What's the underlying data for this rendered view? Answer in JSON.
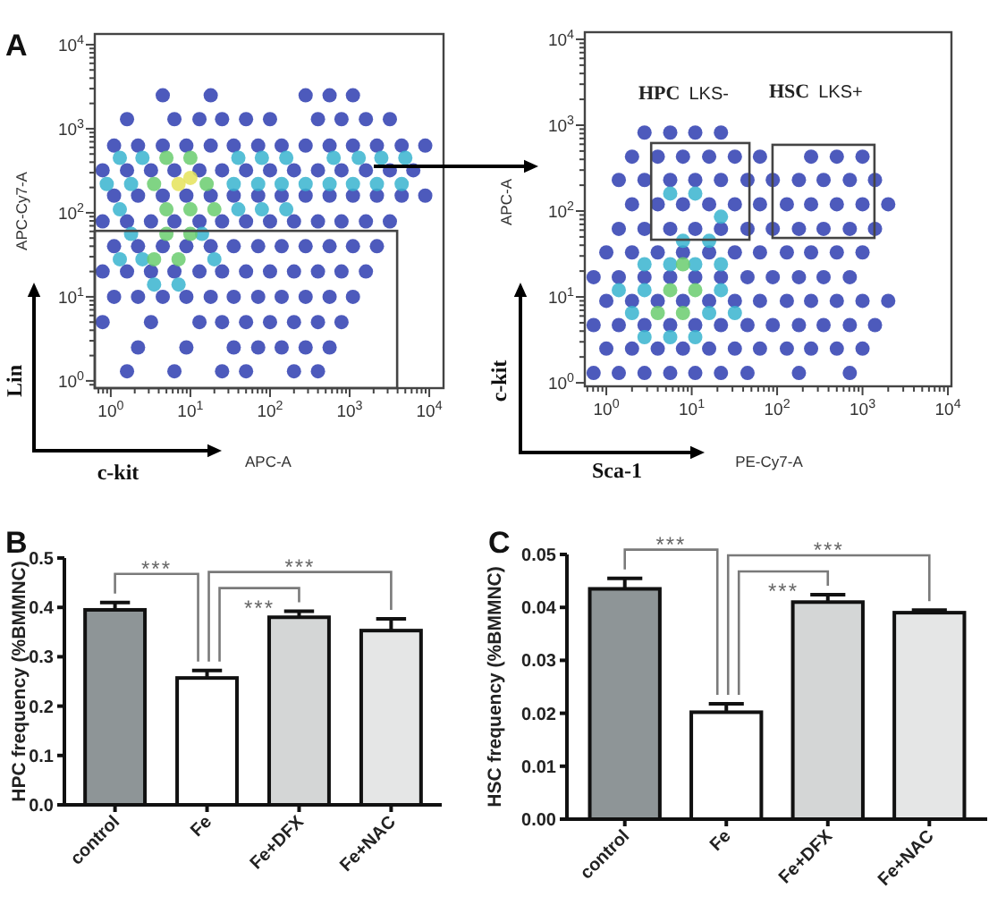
{
  "chart_data": [
    {
      "type": "scatter",
      "title": "A",
      "xlabel": "APC-A",
      "ylabel": "APC-Cy7-A",
      "log": "xy",
      "marker": "circle",
      "xlim": [
        0.63,
        15100
      ],
      "ylim": [
        0.82,
        13400
      ],
      "xticks": [
        {
          "value": 0.7,
          "label": null
        },
        {
          "value": 0.8,
          "label": null
        },
        {
          "value": 0.9,
          "label": null
        },
        {
          "value": 1,
          "label": "10$^{0}$"
        },
        {
          "value": 2,
          "label": null
        },
        {
          "value": 3,
          "label": null
        },
        {
          "value": 4,
          "label": null
        },
        {
          "value": 5,
          "label": null
        },
        {
          "value": 6,
          "label": null
        },
        {
          "value": 7,
          "label": null
        },
        {
          "value": 8,
          "label": null
        },
        {
          "value": 9,
          "label": null
        },
        {
          "value": 10,
          "label": "10$^{1}$"
        },
        {
          "value": 20,
          "label": null
        },
        {
          "value": 30,
          "label": null
        },
        {
          "value": 40,
          "label": null
        },
        {
          "value": 50,
          "label": null
        },
        {
          "value": 60,
          "label": null
        },
        {
          "value": 70,
          "label": null
        },
        {
          "value": 80,
          "label": null
        },
        {
          "value": 90,
          "label": null
        },
        {
          "value": 100,
          "label": "10$^{2}$"
        },
        {
          "value": 200,
          "label": null
        },
        {
          "value": 300,
          "label": null
        },
        {
          "value": 400,
          "label": null
        },
        {
          "value": 500,
          "label": null
        },
        {
          "value": 600,
          "label": null
        },
        {
          "value": 700,
          "label": null
        },
        {
          "value": 800,
          "label": null
        },
        {
          "value": 900,
          "label": null
        },
        {
          "value": 1000,
          "label": "10$^{3}$"
        },
        {
          "value": 2000,
          "label": null
        },
        {
          "value": 3000,
          "label": null
        },
        {
          "value": 4000,
          "label": null
        },
        {
          "value": 5000,
          "label": null
        },
        {
          "value": 6000,
          "label": null
        },
        {
          "value": 7000,
          "label": null
        },
        {
          "value": 8000,
          "label": null
        },
        {
          "value": 9000,
          "label": null
        },
        {
          "value": 10000,
          "label": "10$^{4}$"
        }
      ],
      "yticks": [
        {
          "value": 0.9,
          "label": null
        },
        {
          "value": 1,
          "label": "10$^{0}$"
        },
        {
          "value": 2,
          "label": null
        },
        {
          "value": 3,
          "label": null
        },
        {
          "value": 4,
          "label": null
        },
        {
          "value": 5,
          "label": null
        },
        {
          "value": 6,
          "label": null
        },
        {
          "value": 7,
          "label": null
        },
        {
          "value": 8,
          "label": null
        },
        {
          "value": 9,
          "label": null
        },
        {
          "value": 10,
          "label": "10$^{1}$"
        },
        {
          "value": 20,
          "label": null
        },
        {
          "value": 30,
          "label": null
        },
        {
          "value": 40,
          "label": null
        },
        {
          "value": 50,
          "label": null
        },
        {
          "value": 60,
          "label": null
        },
        {
          "value": 70,
          "label": null
        },
        {
          "value": 80,
          "label": null
        },
        {
          "value": 90,
          "label": null
        },
        {
          "value": 100,
          "label": "10$^{2}$"
        },
        {
          "value": 200,
          "label": null
        },
        {
          "value": 300,
          "label": null
        },
        {
          "value": 400,
          "label": null
        },
        {
          "value": 500,
          "label": null
        },
        {
          "value": 600,
          "label": null
        },
        {
          "value": 700,
          "label": null
        },
        {
          "value": 800,
          "label": null
        },
        {
          "value": 900,
          "label": null
        },
        {
          "value": 1000,
          "label": "10$^{3}$"
        },
        {
          "value": 2000,
          "label": null
        },
        {
          "value": 3000,
          "label": null
        },
        {
          "value": 4000,
          "label": null
        },
        {
          "value": 5000,
          "label": null
        },
        {
          "value": 6000,
          "label": null
        },
        {
          "value": 7000,
          "label": null
        },
        {
          "value": 8000,
          "label": null
        },
        {
          "value": 9000,
          "label": null
        },
        {
          "value": 10000,
          "label": "10$^{4}$"
        }
      ],
      "annotations": [
        "Lin",
        "c-kit"
      ],
      "series": [
        {
          "color": "#2e3db0",
          "x": [
            1.6,
            6.3,
            25,
            50,
            200,
            400,
            2.2,
            8.9,
            35,
            71,
            140,
            280,
            560,
            0.79,
            3.2,
            13,
            25,
            50,
            100,
            200,
            400,
            790,
            1.1,
            2.2,
            4.5,
            8.9,
            18,
            35,
            71,
            140,
            280,
            560,
            1100,
            0.79,
            1.6,
            3.2,
            6.3,
            13,
            25,
            50,
            100,
            200,
            400,
            790,
            1600,
            1.1,
            2.2,
            4.5,
            8.9,
            18,
            35,
            71,
            140,
            280,
            560,
            1100,
            2200,
            0.79,
            1.6,
            3.2,
            6.3,
            13,
            25,
            50,
            100,
            200,
            400,
            790,
            1600,
            3200,
            1.1,
            2.2,
            4.5,
            8.9,
            18,
            35,
            71,
            140,
            280,
            560,
            1100,
            2200,
            4500,
            8900,
            0.79,
            1.6,
            3.2,
            6.3,
            13,
            25,
            50,
            100,
            200,
            400,
            790,
            1600,
            3200,
            6300,
            1.1,
            2.2,
            4.5,
            8.9,
            18,
            35,
            71,
            140,
            280,
            560,
            1100,
            2200,
            4500,
            8900,
            1.6,
            6.3,
            13,
            25,
            50,
            100,
            400,
            790,
            1600,
            3200,
            4.5,
            18,
            280,
            560,
            1100
          ],
          "values": [
            1.3,
            1.3,
            1.3,
            1.3,
            1.3,
            1.3,
            2.5,
            2.5,
            2.5,
            2.5,
            2.5,
            2.5,
            2.5,
            5,
            5,
            5,
            5,
            5,
            5,
            5,
            5,
            5,
            10,
            10,
            10,
            10,
            10,
            10,
            10,
            10,
            10,
            10,
            10,
            20,
            20,
            20,
            20,
            20,
            20,
            20,
            20,
            20,
            20,
            20,
            20,
            40,
            40,
            40,
            40,
            40,
            40,
            40,
            40,
            40,
            40,
            40,
            40,
            79,
            79,
            79,
            79,
            79,
            79,
            79,
            79,
            79,
            79,
            79,
            79,
            79,
            160,
            160,
            160,
            160,
            160,
            160,
            160,
            160,
            160,
            160,
            160,
            160,
            160,
            160,
            320,
            320,
            320,
            320,
            320,
            320,
            320,
            320,
            320,
            320,
            320,
            320,
            320,
            320,
            630,
            630,
            630,
            630,
            630,
            630,
            630,
            630,
            630,
            630,
            630,
            630,
            630,
            630,
            1300,
            1300,
            1300,
            1300,
            1300,
            1300,
            1300,
            1300,
            1300,
            1300,
            2500,
            2500,
            2500,
            2500,
            2500
          ]
        },
        {
          "color": "#38b4cf",
          "x": [
            0.89,
            1.8,
            35,
            71,
            140,
            280,
            560,
            1100,
            2200,
            4500,
            1.3,
            2.5,
            40,
            79,
            160,
            630,
            1300,
            2500,
            5000,
            1.3,
            40,
            79,
            160,
            1.3,
            2.5,
            20,
            1.8,
            14,
            3.5,
            7.1
          ],
          "values": [
            220,
            220,
            220,
            220,
            220,
            220,
            220,
            220,
            220,
            220,
            450,
            450,
            450,
            450,
            450,
            450,
            450,
            450,
            450,
            110,
            110,
            110,
            110,
            28,
            28,
            28,
            56,
            56,
            14,
            14
          ]
        },
        {
          "color": "#6acd6e",
          "x": [
            3.5,
            16,
            5,
            10,
            5,
            10,
            20,
            3.5,
            7.1,
            5,
            10
          ],
          "values": [
            220,
            220,
            450,
            450,
            110,
            110,
            110,
            28,
            28,
            56,
            56
          ]
        },
        {
          "color": "#e5e35a",
          "x": [
            7.1,
            10
          ],
          "values": [
            220,
            260
          ]
        }
      ]
    },
    {
      "type": "scatter",
      "xlabel": "PE-Cy7-A",
      "ylabel": "APC-A",
      "log": "xy",
      "marker": "circle",
      "xlim": [
        0.56,
        11000
      ],
      "ylim": [
        0.91,
        12100
      ],
      "xticks": [
        {
          "value": 0.6,
          "label": null
        },
        {
          "value": 0.7,
          "label": null
        },
        {
          "value": 0.8,
          "label": null
        },
        {
          "value": 0.9,
          "label": null
        },
        {
          "value": 1,
          "label": "10$^{0}$"
        },
        {
          "value": 2,
          "label": null
        },
        {
          "value": 3,
          "label": null
        },
        {
          "value": 4,
          "label": null
        },
        {
          "value": 5,
          "label": null
        },
        {
          "value": 6,
          "label": null
        },
        {
          "value": 7,
          "label": null
        },
        {
          "value": 8,
          "label": null
        },
        {
          "value": 9,
          "label": null
        },
        {
          "value": 10,
          "label": "10$^{1}$"
        },
        {
          "value": 20,
          "label": null
        },
        {
          "value": 30,
          "label": null
        },
        {
          "value": 40,
          "label": null
        },
        {
          "value": 50,
          "label": null
        },
        {
          "value": 60,
          "label": null
        },
        {
          "value": 70,
          "label": null
        },
        {
          "value": 80,
          "label": null
        },
        {
          "value": 90,
          "label": null
        },
        {
          "value": 100,
          "label": "10$^{2}$"
        },
        {
          "value": 200,
          "label": null
        },
        {
          "value": 300,
          "label": null
        },
        {
          "value": 400,
          "label": null
        },
        {
          "value": 500,
          "label": null
        },
        {
          "value": 600,
          "label": null
        },
        {
          "value": 700,
          "label": null
        },
        {
          "value": 800,
          "label": null
        },
        {
          "value": 900,
          "label": null
        },
        {
          "value": 1000,
          "label": "10$^{3}$"
        },
        {
          "value": 2000,
          "label": null
        },
        {
          "value": 3000,
          "label": null
        },
        {
          "value": 4000,
          "label": null
        },
        {
          "value": 5000,
          "label": null
        },
        {
          "value": 6000,
          "label": null
        },
        {
          "value": 7000,
          "label": null
        },
        {
          "value": 8000,
          "label": null
        },
        {
          "value": 9000,
          "label": null
        },
        {
          "value": 10000,
          "label": "10$^{4}$"
        }
      ],
      "yticks": [
        {
          "value": 1,
          "label": "10$^{0}$"
        },
        {
          "value": 2,
          "label": null
        },
        {
          "value": 3,
          "label": null
        },
        {
          "value": 4,
          "label": null
        },
        {
          "value": 5,
          "label": null
        },
        {
          "value": 6,
          "label": null
        },
        {
          "value": 7,
          "label": null
        },
        {
          "value": 8,
          "label": null
        },
        {
          "value": 9,
          "label": null
        },
        {
          "value": 10,
          "label": "10$^{1}$"
        },
        {
          "value": 20,
          "label": null
        },
        {
          "value": 30,
          "label": null
        },
        {
          "value": 40,
          "label": null
        },
        {
          "value": 50,
          "label": null
        },
        {
          "value": 60,
          "label": null
        },
        {
          "value": 70,
          "label": null
        },
        {
          "value": 80,
          "label": null
        },
        {
          "value": 90,
          "label": null
        },
        {
          "value": 100,
          "label": "10$^{2}$"
        },
        {
          "value": 200,
          "label": null
        },
        {
          "value": 300,
          "label": null
        },
        {
          "value": 400,
          "label": null
        },
        {
          "value": 500,
          "label": null
        },
        {
          "value": 600,
          "label": null
        },
        {
          "value": 700,
          "label": null
        },
        {
          "value": 800,
          "label": null
        },
        {
          "value": 900,
          "label": null
        },
        {
          "value": 1000,
          "label": "10$^{3}$"
        },
        {
          "value": 2000,
          "label": null
        },
        {
          "value": 3000,
          "label": null
        },
        {
          "value": 4000,
          "label": null
        },
        {
          "value": 5000,
          "label": null
        },
        {
          "value": 6000,
          "label": null
        },
        {
          "value": 7000,
          "label": null
        },
        {
          "value": 8000,
          "label": null
        },
        {
          "value": 9000,
          "label": null
        },
        {
          "value": 10000,
          "label": "10$^{4}$"
        }
      ],
      "annotations": [
        "HPC LKS-",
        "HSC LKS+",
        "c-kit",
        "Sca-1"
      ],
      "series": [
        {
          "color": "#2e3db0",
          "x": [
            0.71,
            1.4,
            2.8,
            5.6,
            11,
            22,
            45,
            180,
            710,
            1,
            2,
            4,
            7.9,
            16,
            32,
            63,
            130,
            250,
            500,
            1000,
            0.71,
            1.4,
            2.8,
            5.6,
            11,
            22,
            45,
            89,
            180,
            350,
            710,
            1400,
            1,
            2,
            4,
            7.9,
            16,
            32,
            63,
            130,
            250,
            500,
            1000,
            2000,
            0.71,
            1.4,
            2.8,
            5.6,
            11,
            22,
            45,
            89,
            180,
            350,
            710,
            1,
            2,
            4,
            7.9,
            16,
            32,
            63,
            130,
            250,
            500,
            1000,
            1.4,
            2.8,
            5.6,
            11,
            22,
            45,
            89,
            180,
            350,
            710,
            1400,
            2,
            4,
            7.9,
            16,
            32,
            63,
            130,
            250,
            500,
            1000,
            2000,
            1.4,
            2.8,
            5.6,
            11,
            22,
            45,
            89,
            180,
            350,
            710,
            1400,
            2,
            4,
            7.9,
            16,
            32,
            63,
            250,
            500,
            1000,
            2.8,
            5.6,
            11,
            22
          ],
          "values": [
            1.3,
            1.3,
            1.3,
            1.3,
            1.3,
            1.3,
            1.3,
            1.3,
            1.3,
            2.5,
            2.5,
            2.5,
            2.5,
            2.5,
            2.5,
            2.5,
            2.5,
            2.5,
            2.5,
            2.5,
            4.7,
            4.7,
            4.7,
            4.7,
            4.7,
            4.7,
            4.7,
            4.7,
            4.7,
            4.7,
            4.7,
            4.7,
            9,
            9,
            9,
            9,
            9,
            9,
            9,
            9,
            9,
            9,
            9,
            9,
            17,
            17,
            17,
            17,
            17,
            17,
            17,
            17,
            17,
            17,
            17,
            33,
            33,
            33,
            33,
            33,
            33,
            33,
            33,
            33,
            33,
            33,
            62,
            62,
            62,
            62,
            62,
            62,
            62,
            62,
            62,
            62,
            62,
            120,
            120,
            120,
            120,
            120,
            120,
            120,
            120,
            120,
            120,
            120,
            230,
            230,
            230,
            230,
            230,
            230,
            230,
            230,
            230,
            230,
            230,
            430,
            430,
            430,
            430,
            430,
            430,
            430,
            430,
            430,
            820,
            820,
            820,
            820
          ]
        },
        {
          "color": "#38b4cf",
          "x": [
            2.8,
            5.6,
            11,
            2,
            16,
            32,
            1.4,
            2.8,
            22,
            2.8,
            5.6,
            11,
            22,
            7.9,
            16,
            5.6,
            11,
            22
          ],
          "values": [
            3.4,
            3.4,
            3.4,
            6.5,
            6.5,
            6.5,
            12,
            12,
            12,
            24,
            24,
            24,
            24,
            45,
            45,
            160,
            160,
            86
          ]
        },
        {
          "color": "#6acd6e",
          "x": [
            4,
            7.9,
            5.6,
            11,
            7.9
          ],
          "values": [
            6.5,
            6.5,
            12,
            12,
            24
          ]
        }
      ]
    },
    {
      "type": "bar",
      "title": "B",
      "ylabel": "HPC frequency (%BMMNC)",
      "categories": [
        "control",
        "Fe",
        "Fe+DFX",
        "Fe+NAC"
      ],
      "values": [
        0.395,
        0.257,
        0.38,
        0.353
      ],
      "colors": [
        "#8e9597",
        "#ffffff",
        "#d4d6d6",
        "#e5e6e6"
      ],
      "errors": [
        [
          0.395,
          0.41
        ],
        [
          0.257,
          0.272
        ],
        [
          0.38,
          0.392
        ],
        [
          0.353,
          0.377
        ]
      ],
      "ylim": [
        0,
        0.5
      ],
      "yticks": [
        {
          "value": 0,
          "label": "0.0"
        },
        0.1,
        0.2,
        0.3,
        0.4,
        0.5
      ],
      "annotations": [
        "***",
        "***",
        "***"
      ]
    },
    {
      "type": "bar",
      "title": "C",
      "ylabel": "HSC frequency (%BMMNC)",
      "categories": [
        "control",
        "Fe",
        "Fe+DFX",
        "Fe+NAC"
      ],
      "values": [
        0.0435,
        0.0202,
        0.041,
        0.039
      ],
      "colors": [
        "#8e9597",
        "#ffffff",
        "#d4d6d6",
        "#e5e6e6"
      ],
      "errors": [
        [
          0.0435,
          0.0455
        ],
        [
          0.0202,
          0.0218
        ],
        [
          0.041,
          0.0424
        ],
        [
          0.039,
          0.0395
        ]
      ],
      "ylim": [
        0,
        0.05
      ],
      "yticks": [
        {
          "value": 0,
          "label": "0.00"
        },
        0.01,
        0.02,
        0.03,
        0.04,
        0.05
      ],
      "annotations": [
        "***",
        "***",
        "***"
      ]
    }
  ]
}
